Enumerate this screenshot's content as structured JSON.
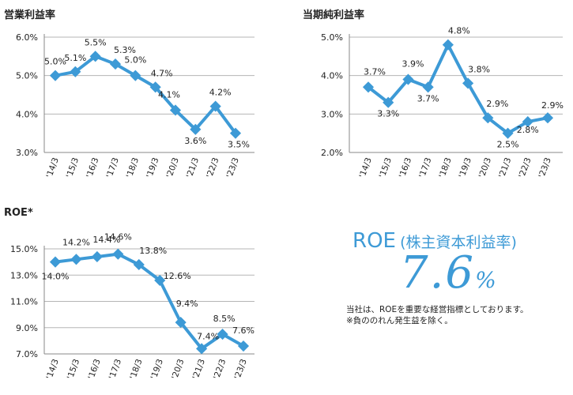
{
  "colors": {
    "series": "#3d9ad6",
    "grid": "#b5b5b5",
    "axis": "#888888",
    "text": "#222222"
  },
  "chart_data": [
    {
      "type": "line",
      "title": "営業利益率",
      "categories": [
        "'14/3",
        "'15/3",
        "'16/3",
        "'17/3",
        "'18/3",
        "'19/3",
        "'20/3",
        "'21/3",
        "'22/3",
        "'23/3"
      ],
      "values": [
        5.0,
        5.1,
        5.5,
        5.3,
        5.0,
        4.7,
        4.1,
        3.6,
        4.2,
        3.5
      ],
      "data_labels": [
        "5.0%",
        "5.1%",
        "5.5%",
        "5.3%",
        "5.0%",
        "4.7%",
        "4.1%",
        "3.6%",
        "4.2%",
        "3.5%"
      ],
      "yticks": [
        "6.0%",
        "5.0%",
        "4.0%",
        "3.0%"
      ],
      "ylim": [
        3.0,
        6.0
      ],
      "grid": true
    },
    {
      "type": "line",
      "title": "当期純利益率",
      "categories": [
        "'14/3",
        "'15/3",
        "'16/3",
        "'17/3",
        "'18/3",
        "'19/3",
        "'20/3",
        "'21/3",
        "'22/3",
        "'23/3"
      ],
      "values": [
        3.7,
        3.3,
        3.9,
        3.7,
        4.8,
        3.8,
        2.9,
        2.5,
        2.8,
        2.9
      ],
      "data_labels": [
        "3.7%",
        "3.3%",
        "3.9%",
        "3.7%",
        "4.8%",
        "3.8%",
        "2.9%",
        "2.5%",
        "2.8%",
        "2.9%"
      ],
      "yticks": [
        "5.0%",
        "4.0%",
        "3.0%",
        "2.0%"
      ],
      "ylim": [
        2.0,
        5.0
      ],
      "grid": true
    },
    {
      "type": "line",
      "title": "ROE*",
      "categories": [
        "'14/3",
        "'15/3",
        "'16/3",
        "'17/3",
        "'18/3",
        "'19/3",
        "'20/3",
        "'21/3",
        "'22/3",
        "'23/3"
      ],
      "values": [
        14.0,
        14.2,
        14.4,
        14.6,
        13.8,
        12.6,
        9.4,
        7.4,
        8.5,
        7.6
      ],
      "data_labels": [
        "14.0%",
        "14.2%",
        "14.4%",
        "14.6%",
        "13.8%",
        "12.6%",
        "9.4%",
        "7.4%",
        "8.5%",
        "7.6%"
      ],
      "yticks": [
        "15.0%",
        "13.0%",
        "11.0%",
        "9.0%",
        "7.0%"
      ],
      "ylim": [
        7.0,
        15.0
      ],
      "grid": true
    }
  ],
  "roe_panel": {
    "heading": "ROE",
    "heading_sub": "(株主資本利益率)",
    "value": "7.6",
    "unit": "%",
    "note_line1": "当社は、ROEを重要な経営指標としております。",
    "note_line2": "※負ののれん発生益を除く。"
  }
}
